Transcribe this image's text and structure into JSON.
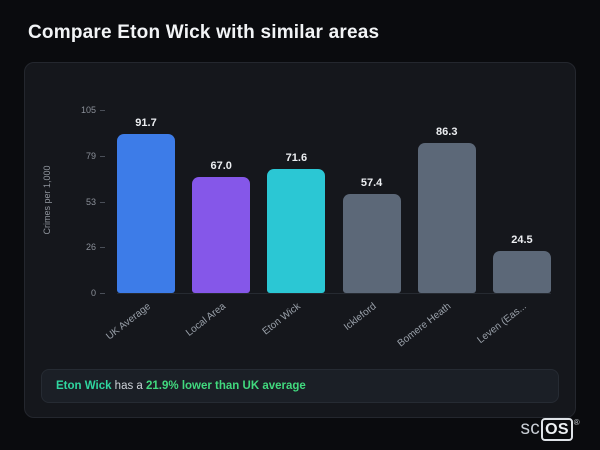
{
  "page": {
    "title": "Compare Eton Wick with similar areas"
  },
  "chart_data": {
    "type": "bar",
    "title": "",
    "categories": [
      "UK Average",
      "Local Area",
      "Eton Wick",
      "Ickleford",
      "Bomere Heath",
      "Leven (Eas..."
    ],
    "values": [
      91.7,
      67.0,
      71.6,
      57.4,
      86.3,
      24.5
    ],
    "value_labels": [
      "91.7",
      "67.0",
      "71.6",
      "57.4",
      "86.3",
      "24.5"
    ],
    "bar_colors": [
      "#3d7ce8",
      "#8557e9",
      "#2bc7d4",
      "#5c6878",
      "#5c6878",
      "#5c6878"
    ],
    "xlabel": "",
    "ylabel": "Crimes per 1,000",
    "yticks": [
      0,
      26,
      53,
      79,
      105
    ],
    "ylim": [
      0,
      105
    ],
    "grid": false,
    "legend": false
  },
  "note": {
    "area_name": "Eton Wick",
    "middle_text": " has a ",
    "highlight_text": "21.9% lower than UK average",
    "name_color": "#2fd6a0",
    "highlight_color": "#41d97e"
  },
  "logo": {
    "prefix": "sc",
    "boxed": "OS",
    "registered": "®"
  }
}
